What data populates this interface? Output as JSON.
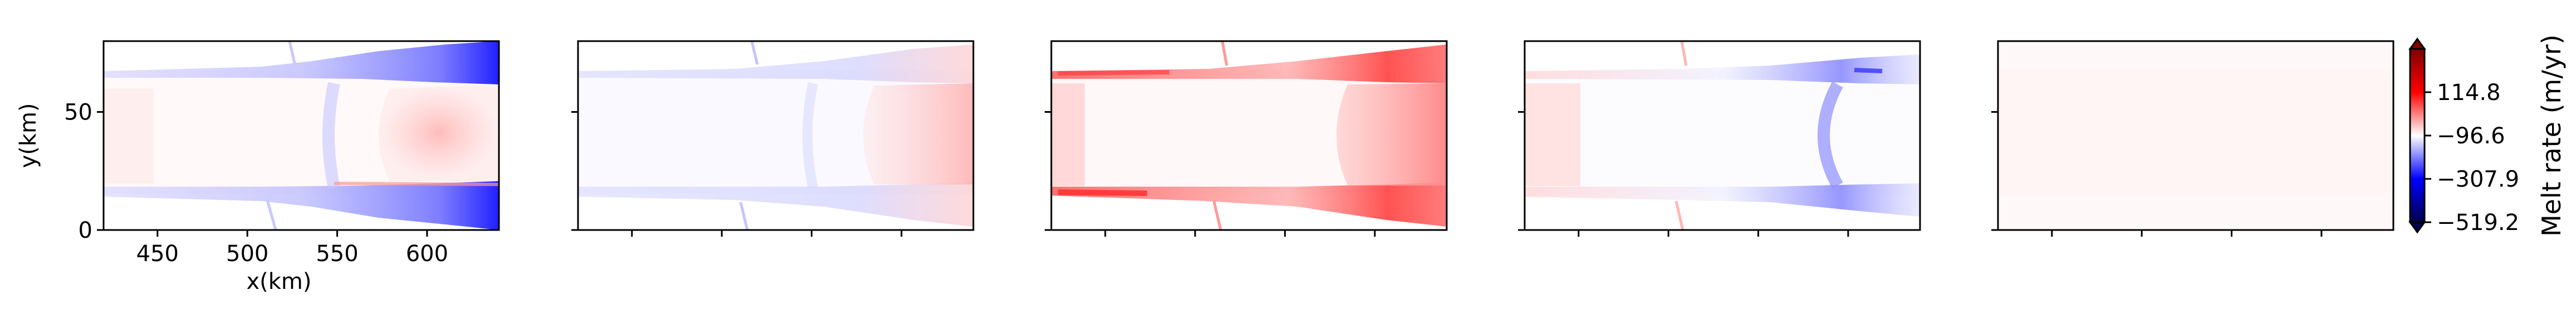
{
  "figure": {
    "panel_count": 5,
    "colormap": {
      "name": "seismic",
      "low": "#00004c",
      "mid_low": "#0000ff",
      "center": "#ffffff",
      "mid_high": "#ff0000",
      "high": "#800000"
    }
  },
  "chart_data": [
    {
      "type": "heatmap",
      "panel": 1,
      "xlabel": "x(km)",
      "ylabel": "y(km)",
      "xlim": [
        420,
        640
      ],
      "ylim": [
        0,
        80
      ],
      "xticks": [
        450,
        500,
        550,
        600
      ],
      "xtick_labels": [
        "450",
        "500",
        "550",
        "600"
      ],
      "yticks": [
        0,
        50
      ],
      "ytick_labels": [
        "0",
        "50"
      ],
      "pattern": "blue (negative) along top and bottom edges near x=620-640, light red in center-right interior (x=580-630), faint blue vertical band near x=555"
    },
    {
      "type": "heatmap",
      "panel": 2,
      "xlabel": "",
      "ylabel": "",
      "xlim": [
        420,
        640
      ],
      "ylim": [
        0,
        80
      ],
      "xticks": [
        450,
        500,
        550,
        600
      ],
      "xtick_labels": [
        "",
        "",
        "",
        ""
      ],
      "yticks": [
        0,
        50
      ],
      "ytick_labels": [
        "",
        ""
      ],
      "pattern": "light blue along channel edges, light red at right end of channel (x=580-640)"
    },
    {
      "type": "heatmap",
      "panel": 3,
      "xlabel": "",
      "ylabel": "",
      "xlim": [
        420,
        640
      ],
      "ylim": [
        0,
        80
      ],
      "xticks": [
        450,
        500,
        550,
        600
      ],
      "xtick_labels": [
        "",
        "",
        "",
        ""
      ],
      "yticks": [
        0,
        50
      ],
      "ytick_labels": [
        "",
        ""
      ],
      "pattern": "strong red along top and bottom channel edges and at right end (x=590-640)"
    },
    {
      "type": "heatmap",
      "panel": 4,
      "xlabel": "",
      "ylabel": "",
      "xlim": [
        420,
        640
      ],
      "ylim": [
        0,
        80
      ],
      "xticks": [
        450,
        500,
        550,
        600
      ],
      "xtick_labels": [
        "",
        "",
        "",
        ""
      ],
      "yticks": [
        0,
        50
      ],
      "ytick_labels": [
        "",
        ""
      ],
      "pattern": "light red at left end of channel, blue crescent band near x=590, blue at top edge near x=610"
    },
    {
      "type": "heatmap",
      "panel": 5,
      "xlabel": "",
      "ylabel": "",
      "xlim": [
        420,
        640
      ],
      "ylim": [
        0,
        80
      ],
      "xticks": [
        450,
        500,
        550,
        600
      ],
      "xtick_labels": [
        "",
        "",
        "",
        ""
      ],
      "yticks": [
        0,
        50
      ],
      "ytick_labels": [
        "",
        ""
      ],
      "pattern": "nearly uniform, near-zero melt rate (very faint pink)"
    }
  ],
  "colorbar": {
    "label": "Melt rate (m/yr)",
    "range": [
      -519.2,
      326.0
    ],
    "ticks": [
      114.8,
      -96.6,
      -307.9,
      -519.2
    ],
    "tick_labels": [
      "114.8",
      "−96.6",
      "−307.9",
      "−519.2"
    ],
    "extend": "both"
  }
}
